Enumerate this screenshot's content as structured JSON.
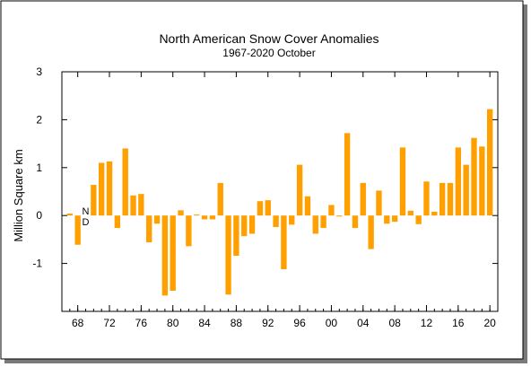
{
  "chart_data": {
    "type": "bar",
    "title": "North American Snow Cover Anomalies",
    "subtitle": "1967-2020 October",
    "ylabel": "Million Square km",
    "xlabel": "",
    "ylim": [
      -2,
      3
    ],
    "xlim": [
      1966,
      2021
    ],
    "yticks": [
      "-1",
      "0",
      "1",
      "2",
      "3"
    ],
    "xtick_labels": [
      "68",
      "72",
      "76",
      "80",
      "84",
      "88",
      "92",
      "96",
      "00",
      "04",
      "08",
      "12",
      "16",
      "20"
    ],
    "xtick_years": [
      1968,
      1972,
      1976,
      1980,
      1984,
      1988,
      1992,
      1996,
      2000,
      2004,
      2008,
      2012,
      2016,
      2020
    ],
    "missing_label": [
      "N",
      "D"
    ],
    "missing_year": 1969,
    "bar_color": "#ffa000",
    "x": [
      1967,
      1968,
      1969,
      1970,
      1971,
      1972,
      1973,
      1974,
      1975,
      1976,
      1977,
      1978,
      1979,
      1980,
      1981,
      1982,
      1983,
      1984,
      1985,
      1986,
      1987,
      1988,
      1989,
      1990,
      1991,
      1992,
      1993,
      1994,
      1995,
      1996,
      1997,
      1998,
      1999,
      2000,
      2001,
      2002,
      2003,
      2004,
      2005,
      2006,
      2007,
      2008,
      2009,
      2010,
      2011,
      2012,
      2013,
      2014,
      2015,
      2016,
      2017,
      2018,
      2019,
      2020
    ],
    "values": [
      0.04,
      -0.61,
      null,
      0.64,
      1.1,
      1.13,
      -0.26,
      1.4,
      0.42,
      0.45,
      -0.56,
      -0.17,
      -1.67,
      -1.57,
      0.11,
      -0.64,
      0.02,
      -0.08,
      -0.08,
      0.68,
      -1.65,
      -0.84,
      -0.43,
      -0.38,
      0.3,
      0.32,
      -0.24,
      -1.12,
      -0.19,
      1.06,
      0.4,
      -0.38,
      -0.26,
      0.22,
      -0.02,
      1.72,
      -0.26,
      0.68,
      -0.7,
      0.52,
      -0.17,
      -0.13,
      1.42,
      0.1,
      -0.18,
      0.71,
      0.08,
      0.68,
      0.68,
      1.42,
      1.06,
      1.62,
      1.44,
      2.22
    ]
  }
}
